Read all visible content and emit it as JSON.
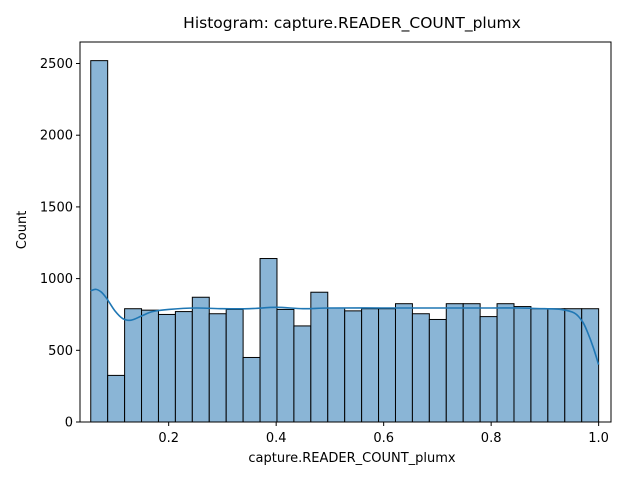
{
  "chart_data": {
    "type": "bar",
    "subtype": "histogram",
    "title": "Histogram: capture.READER_COUNT_plumx",
    "xlabel": "capture.READER_COUNT_plumx",
    "ylabel": "Count",
    "xlim": [
      0.035,
      1.023
    ],
    "ylim": [
      0,
      2650
    ],
    "x_ticks": [
      0.2,
      0.4,
      0.6,
      0.8,
      1.0
    ],
    "x_tick_labels": [
      "0.2",
      "0.4",
      "0.6",
      "0.8",
      "1.0"
    ],
    "y_ticks": [
      0,
      500,
      1000,
      1500,
      2000,
      2500
    ],
    "y_tick_labels": [
      "0",
      "500",
      "1000",
      "1500",
      "2000",
      "2500"
    ],
    "bin_start": 0.055,
    "bin_width": 0.0315,
    "counts": [
      2520,
      325,
      790,
      780,
      750,
      770,
      870,
      755,
      785,
      450,
      1140,
      785,
      670,
      905,
      795,
      775,
      790,
      790,
      825,
      755,
      715,
      825,
      825,
      735,
      825,
      805,
      790,
      790,
      790,
      790
    ],
    "kde": {
      "x": [
        0.055,
        0.065,
        0.075,
        0.085,
        0.1,
        0.115,
        0.13,
        0.15,
        0.17,
        0.2,
        0.25,
        0.3,
        0.35,
        0.4,
        0.45,
        0.5,
        0.6,
        0.7,
        0.8,
        0.85,
        0.9,
        0.93,
        0.955,
        0.97,
        0.98,
        0.99,
        1.0
      ],
      "y": [
        915,
        925,
        905,
        860,
        775,
        720,
        710,
        740,
        770,
        785,
        795,
        790,
        790,
        800,
        790,
        795,
        795,
        795,
        795,
        795,
        790,
        785,
        760,
        700,
        620,
        520,
        400
      ]
    },
    "grid": false,
    "legend": "none",
    "colors": {
      "bar_fill": "#8ab5d6",
      "bar_edge": "#000000",
      "kde_line": "#1f77b4"
    }
  }
}
